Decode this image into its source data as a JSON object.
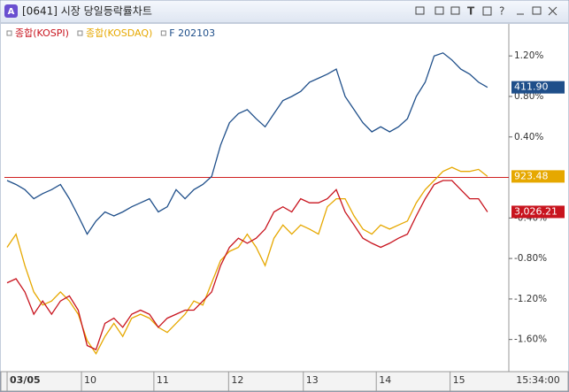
{
  "window": {
    "title": "[0641] 시장 당일등락률차트"
  },
  "chart_data": {
    "type": "line",
    "x": [
      0,
      1,
      2,
      3,
      4,
      5,
      6,
      7,
      8,
      9,
      10,
      11,
      12,
      13,
      14,
      15,
      16,
      17,
      18,
      19,
      20,
      21,
      22,
      23,
      24,
      25,
      26,
      27,
      28,
      29,
      30,
      31,
      32,
      33,
      34,
      35,
      36,
      37,
      38,
      39,
      40,
      41,
      42,
      43,
      44,
      45,
      46,
      47,
      48,
      49,
      50,
      51,
      52,
      53,
      54
    ],
    "xlim": [
      -0.3,
      56.4
    ],
    "xticks": [
      {
        "value": 0,
        "label": "03/05"
      },
      {
        "value": 8.36,
        "label": "10"
      },
      {
        "value": 16.5,
        "label": "11"
      },
      {
        "value": 24.9,
        "label": "12"
      },
      {
        "value": 33.3,
        "label": "13"
      },
      {
        "value": 41.5,
        "label": "14"
      },
      {
        "value": 49.8,
        "label": "15"
      }
    ],
    "current_time": "15:34:00",
    "ylim": [
      -1.9,
      1.49
    ],
    "yticks": [
      {
        "value": 1.2,
        "label": "1.20%"
      },
      {
        "value": 0.8,
        "label": "0.80%"
      },
      {
        "value": 0.4,
        "label": "0.40%"
      },
      {
        "value": -0.4,
        "label": "-0.40%"
      },
      {
        "value": -0.8,
        "label": "-0.80%"
      },
      {
        "value": -1.2,
        "label": "-1.20%"
      },
      {
        "value": -1.6,
        "label": "-1.60%"
      }
    ],
    "zero_line": 0,
    "grid": false,
    "series": [
      {
        "name": "종합(KOSPI)",
        "color": "#c8141e",
        "end_label": "3,026.21",
        "values": [
          -1.04,
          -1.0,
          -1.13,
          -1.35,
          -1.22,
          -1.35,
          -1.22,
          -1.17,
          -1.31,
          -1.66,
          -1.7,
          -1.44,
          -1.39,
          -1.48,
          -1.35,
          -1.31,
          -1.35,
          -1.48,
          -1.39,
          -1.35,
          -1.31,
          -1.31,
          -1.22,
          -1.13,
          -0.87,
          -0.69,
          -0.6,
          -0.65,
          -0.6,
          -0.51,
          -0.34,
          -0.29,
          -0.34,
          -0.21,
          -0.25,
          -0.25,
          -0.21,
          -0.12,
          -0.34,
          -0.47,
          -0.6,
          -0.65,
          -0.69,
          -0.65,
          -0.6,
          -0.56,
          -0.38,
          -0.21,
          -0.07,
          -0.03,
          -0.03,
          -0.12,
          -0.21,
          -0.21,
          -0.34
        ]
      },
      {
        "name": "종합(KOSDAQ)",
        "color": "#e6a800",
        "end_label": "923.48",
        "values": [
          -0.69,
          -0.56,
          -0.87,
          -1.13,
          -1.26,
          -1.22,
          -1.13,
          -1.22,
          -1.35,
          -1.61,
          -1.74,
          -1.57,
          -1.44,
          -1.57,
          -1.39,
          -1.35,
          -1.39,
          -1.48,
          -1.53,
          -1.44,
          -1.35,
          -1.22,
          -1.26,
          -1.04,
          -0.82,
          -0.73,
          -0.69,
          -0.56,
          -0.69,
          -0.87,
          -0.6,
          -0.47,
          -0.56,
          -0.47,
          -0.51,
          -0.56,
          -0.29,
          -0.21,
          -0.21,
          -0.38,
          -0.51,
          -0.56,
          -0.47,
          -0.51,
          -0.47,
          -0.43,
          -0.25,
          -0.12,
          -0.03,
          0.06,
          0.1,
          0.06,
          0.06,
          0.08,
          0.01
        ]
      },
      {
        "name": "F 202103",
        "color": "#1f4f8a",
        "end_label": "411.90",
        "values": [
          -0.03,
          -0.07,
          -0.12,
          -0.21,
          -0.16,
          -0.12,
          -0.07,
          -0.21,
          -0.38,
          -0.56,
          -0.43,
          -0.34,
          -0.38,
          -0.34,
          -0.29,
          -0.25,
          -0.21,
          -0.34,
          -0.29,
          -0.12,
          -0.21,
          -0.12,
          -0.07,
          0.01,
          0.32,
          0.54,
          0.63,
          0.67,
          0.58,
          0.5,
          0.63,
          0.76,
          0.8,
          0.85,
          0.94,
          0.98,
          1.02,
          1.07,
          0.8,
          0.67,
          0.54,
          0.45,
          0.5,
          0.45,
          0.5,
          0.58,
          0.8,
          0.94,
          1.2,
          1.23,
          1.16,
          1.07,
          1.02,
          0.94,
          0.89
        ]
      }
    ]
  }
}
